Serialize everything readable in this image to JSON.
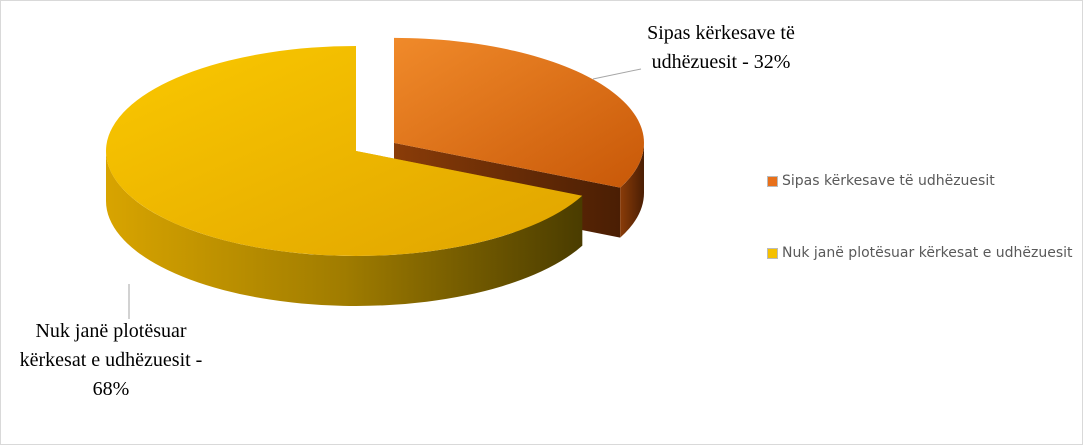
{
  "chart_data": {
    "type": "pie",
    "categories": [
      "Sipas kërkesave të udhëzuesit",
      "Nuk janë plotësuar kërkesat e udhëzuesit"
    ],
    "values": [
      32,
      68
    ],
    "value_labels": [
      "Sipas kërkesave të udhëzuesit - 32%",
      "Nuk janë plotësuar kërkesat e udhëzuesit - 68%"
    ],
    "colors": [
      "#e8701a",
      "#f5c000"
    ],
    "legend": "right"
  }
}
